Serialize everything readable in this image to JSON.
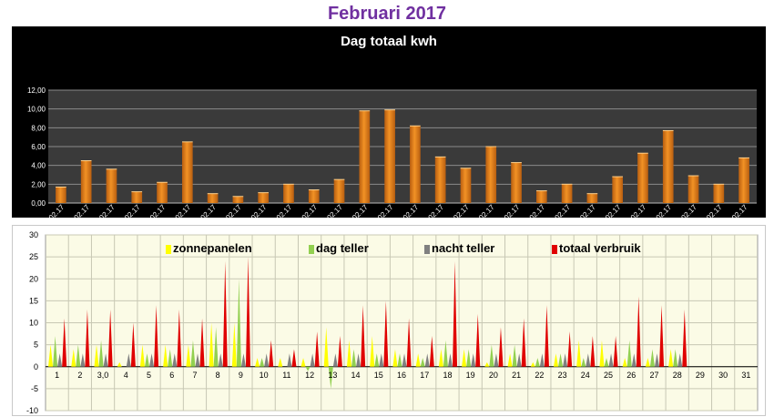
{
  "page": {
    "title": "Februari 2017"
  },
  "chart_data": [
    {
      "type": "bar",
      "title": "Dag totaal kwh",
      "xlabel": "",
      "ylabel": "",
      "ylim": [
        0,
        12
      ],
      "yticks": [
        "0,00",
        "2,00",
        "4,00",
        "6,00",
        "8,00",
        "10,00",
        "12,00"
      ],
      "categories": [
        "01.02.17",
        "02.02.17",
        "03.02.17",
        "04.02.17",
        "05.02.17",
        "06.02.17",
        "07.02.17",
        "08.02.17",
        "09.02.17",
        "10.02.17",
        "11.02.17",
        "12.02.17",
        "13.02.17",
        "14.02.17",
        "15.02.17",
        "16.02.17",
        "17.02.17",
        "18.02.17",
        "19.02.17",
        "20.02.17",
        "21.02.17",
        "22.02.17",
        "23.02.17",
        "24.02.17",
        "25.02.17",
        "26.02.17",
        "27.02.17",
        "28.02.17"
      ],
      "values": [
        1.7,
        4.5,
        3.6,
        1.2,
        2.2,
        6.5,
        1.0,
        0.7,
        1.1,
        2.0,
        1.4,
        2.5,
        9.8,
        9.9,
        8.2,
        4.9,
        3.7,
        6.0,
        4.3,
        1.3,
        2.0,
        1.0,
        2.8,
        5.3,
        7.7,
        2.9,
        2.0,
        4.8
      ],
      "bar_color": "#f29225",
      "background": "#3a3a3a",
      "grid": true
    },
    {
      "type": "bar",
      "xlabel": "",
      "ylabel": "",
      "ylim": [
        -10,
        30
      ],
      "yticks": [
        "-10",
        "-5",
        "0",
        "5",
        "10",
        "15",
        "20",
        "25",
        "30"
      ],
      "categories": [
        "1",
        "2",
        "3,0",
        "4",
        "5",
        "6",
        "7",
        "8",
        "9",
        "10",
        "11",
        "12",
        "13",
        "14",
        "15",
        "16",
        "17",
        "18",
        "19",
        "20",
        "21",
        "22",
        "23",
        "24",
        "25",
        "26",
        "27",
        "28",
        "29",
        "30",
        "31"
      ],
      "legend_position": "top",
      "background": "#fbfbe6",
      "grid": true,
      "series": [
        {
          "name": "zonnepanelen",
          "color": "#ffff00",
          "values": [
            5,
            4,
            5,
            1,
            5,
            5,
            5,
            10,
            10,
            2,
            2,
            2,
            9,
            6,
            7,
            4,
            3,
            4,
            4,
            1,
            3,
            1,
            3,
            6,
            6,
            2,
            2,
            4,
            0,
            0,
            0
          ]
        },
        {
          "name": "dag teller",
          "color": "#92d050",
          "values": [
            7,
            5,
            6,
            0,
            3,
            4,
            6,
            9,
            20,
            2,
            0,
            -1,
            -5,
            4,
            3,
            3,
            2,
            6,
            4,
            5,
            5,
            2,
            3,
            2,
            2,
            6,
            4,
            4,
            0,
            0,
            0
          ]
        },
        {
          "name": "nacht teller",
          "color": "#808080",
          "values": [
            3,
            3,
            3,
            3,
            3,
            3,
            3,
            3,
            3,
            3,
            3,
            3,
            3,
            3,
            3,
            3,
            3,
            3,
            3,
            3,
            3,
            3,
            3,
            3,
            3,
            3,
            3,
            3,
            0,
            0,
            0
          ]
        },
        {
          "name": "totaal verbruik",
          "color": "#e00000",
          "values": [
            11,
            13,
            13,
            10,
            14,
            13,
            11,
            24,
            25,
            6,
            4,
            8,
            7,
            14,
            15,
            11,
            7,
            24,
            12,
            9,
            11,
            14,
            8,
            7,
            7,
            16,
            14,
            13,
            0,
            0,
            0
          ]
        }
      ]
    }
  ]
}
